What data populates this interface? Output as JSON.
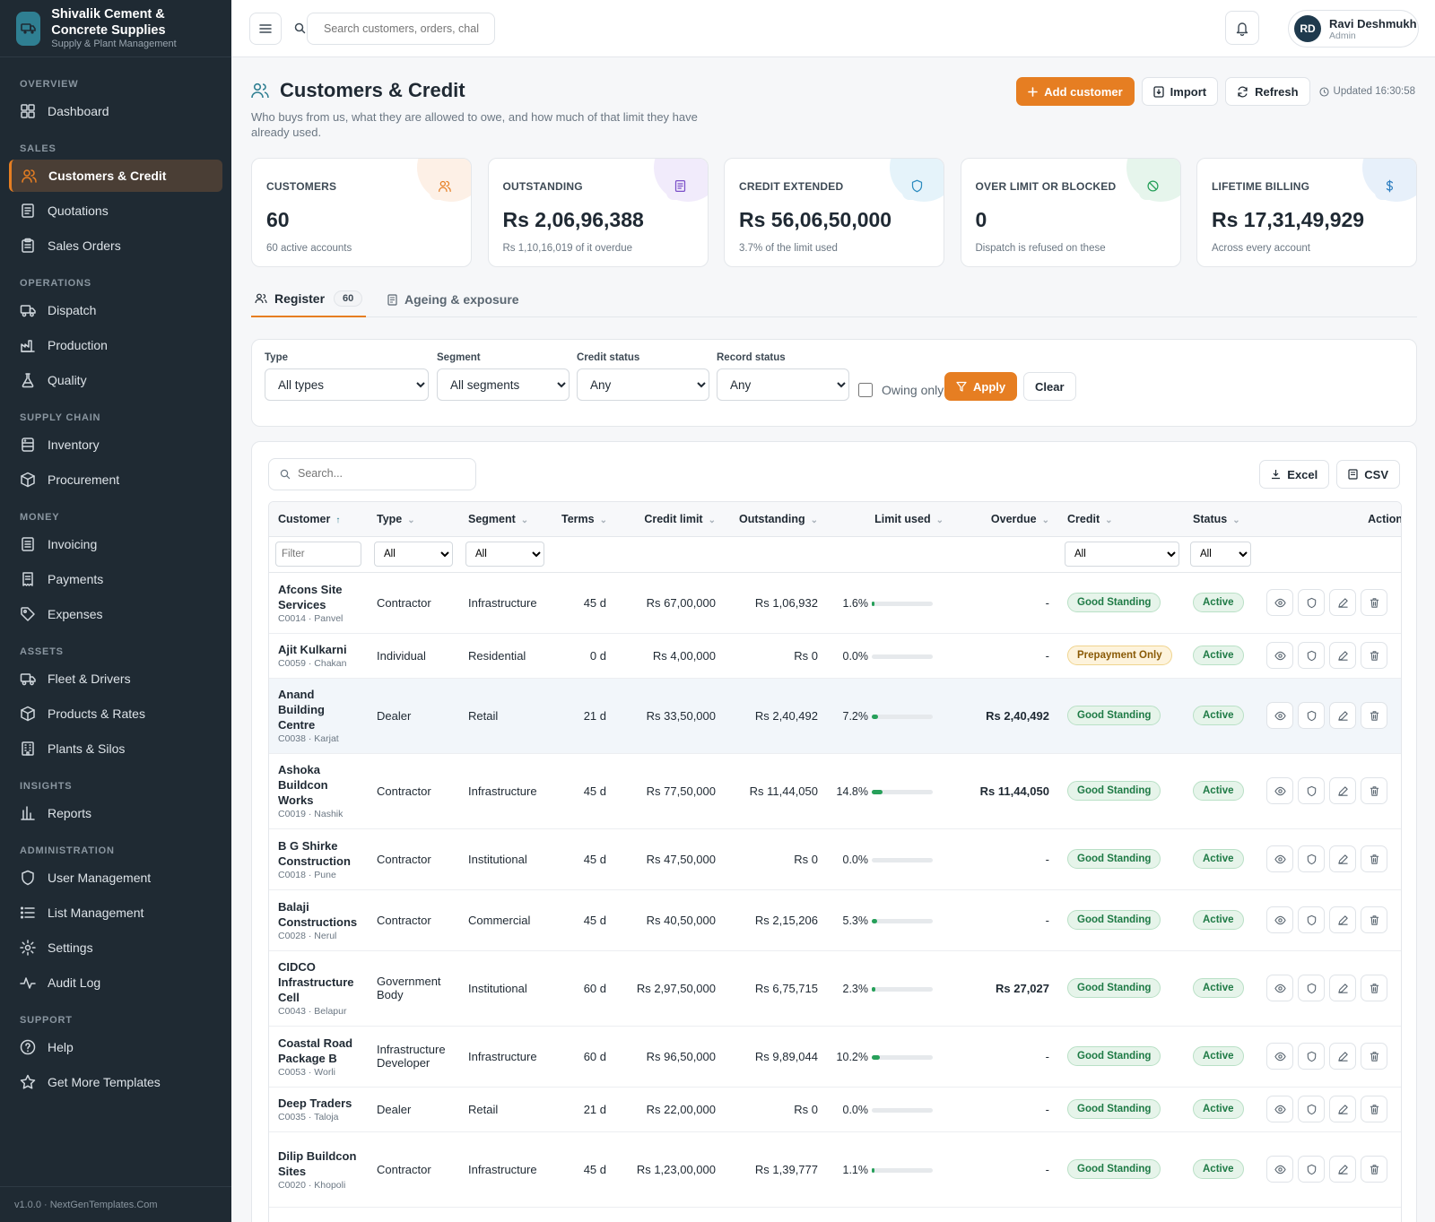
{
  "brand": {
    "title": "Shivalik Cement & Concrete Supplies",
    "subtitle": "Supply & Plant Management"
  },
  "nav": [
    {
      "section": "OVERVIEW",
      "items": [
        {
          "label": "Dashboard",
          "icon": "dashboard-icon"
        }
      ]
    },
    {
      "section": "SALES",
      "items": [
        {
          "label": "Customers & Credit",
          "icon": "users-icon",
          "active": true
        },
        {
          "label": "Quotations",
          "icon": "document-icon"
        },
        {
          "label": "Sales Orders",
          "icon": "clipboard-icon"
        }
      ]
    },
    {
      "section": "OPERATIONS",
      "items": [
        {
          "label": "Dispatch",
          "icon": "truck-icon"
        },
        {
          "label": "Production",
          "icon": "factory-icon"
        },
        {
          "label": "Quality",
          "icon": "flask-icon"
        }
      ]
    },
    {
      "section": "SUPPLY CHAIN",
      "items": [
        {
          "label": "Inventory",
          "icon": "database-icon"
        },
        {
          "label": "Procurement",
          "icon": "box-icon"
        }
      ]
    },
    {
      "section": "MONEY",
      "items": [
        {
          "label": "Invoicing",
          "icon": "invoice-icon"
        },
        {
          "label": "Payments",
          "icon": "receipt-icon"
        },
        {
          "label": "Expenses",
          "icon": "tag-icon"
        }
      ]
    },
    {
      "section": "ASSETS",
      "items": [
        {
          "label": "Fleet & Drivers",
          "icon": "truck-icon"
        },
        {
          "label": "Products & Rates",
          "icon": "box-icon"
        },
        {
          "label": "Plants & Silos",
          "icon": "building-icon"
        }
      ]
    },
    {
      "section": "INSIGHTS",
      "items": [
        {
          "label": "Reports",
          "icon": "bar-chart-icon"
        }
      ]
    },
    {
      "section": "ADMINISTRATION",
      "items": [
        {
          "label": "User Management",
          "icon": "shield-icon"
        },
        {
          "label": "List Management",
          "icon": "list-icon"
        },
        {
          "label": "Settings",
          "icon": "gear-icon"
        },
        {
          "label": "Audit Log",
          "icon": "activity-icon"
        }
      ]
    },
    {
      "section": "SUPPORT",
      "items": [
        {
          "label": "Help",
          "icon": "help-icon"
        },
        {
          "label": "Get More Templates",
          "icon": "star-icon"
        }
      ]
    }
  ],
  "footer": "v1.0.0 · NextGenTemplates.Com",
  "topbar": {
    "search_placeholder": "Search customers, orders, chal",
    "user_name": "Ravi Deshmukh",
    "user_role": "Admin",
    "user_initials": "RD"
  },
  "page": {
    "title": "Customers & Credit",
    "description": "Who buys from us, what they are allowed to owe, and how much of that limit they have already used.",
    "add_label": "Add customer",
    "import_label": "Import",
    "refresh_label": "Refresh",
    "updated": "Updated 16:30:58"
  },
  "stats": [
    {
      "label": "CUSTOMERS",
      "value": "60",
      "sub": "60 active accounts",
      "icon": "users-icon",
      "color": "#e67e22",
      "bg": "#fdf0e6"
    },
    {
      "label": "OUTSTANDING",
      "value": "Rs 2,06,96,388",
      "sub": "Rs 1,10,16,019 of it overdue",
      "icon": "document-icon",
      "color": "#7b4fc8",
      "bg": "#f1ebfb"
    },
    {
      "label": "CREDIT EXTENDED",
      "value": "Rs 56,06,50,000",
      "sub": "3.7% of the limit used",
      "icon": "shield-icon",
      "color": "#2b8bbf",
      "bg": "#e5f3fa"
    },
    {
      "label": "OVER LIMIT OR BLOCKED",
      "value": "0",
      "sub": "Dispatch is refused on these",
      "icon": "ban-icon",
      "color": "#27a05a",
      "bg": "#e6f5ec"
    },
    {
      "label": "LIFETIME BILLING",
      "value": "Rs 17,31,49,929",
      "sub": "Across every account",
      "icon": "dollar-icon",
      "color": "#2f7fc1",
      "bg": "#e7f0fa"
    }
  ],
  "tabs": {
    "register": "Register",
    "register_count": "60",
    "ageing": "Ageing & exposure"
  },
  "filters": {
    "type_label": "Type",
    "type_value": "All types",
    "segment_label": "Segment",
    "segment_value": "All segments",
    "credit_label": "Credit status",
    "credit_value": "Any",
    "record_label": "Record status",
    "record_value": "Any",
    "owing_label": "Owing only",
    "apply_label": "Apply",
    "clear_label": "Clear"
  },
  "table": {
    "search_placeholder": "Search...",
    "excel_label": "Excel",
    "csv_label": "CSV",
    "columns": {
      "customer": "Customer",
      "type": "Type",
      "segment": "Segment",
      "terms": "Terms",
      "credit_limit": "Credit limit",
      "outstanding": "Outstanding",
      "limit_used": "Limit used",
      "overdue": "Overdue",
      "credit": "Credit",
      "status": "Status",
      "actions": "Action"
    },
    "filter_placeholder": "Filter",
    "filter_all": "All",
    "rows": [
      {
        "name": "Afcons Site Services",
        "meta": "C0014 · Panvel",
        "type": "Contractor",
        "segment": "Infrastructure",
        "terms": "45 d",
        "limit": "Rs 67,00,000",
        "outstanding": "Rs 1,06,932",
        "pct": "1.6%",
        "pct_value": 1.6,
        "overdue": "-",
        "credit": "Good Standing",
        "credit_kind": "good",
        "status": "Active"
      },
      {
        "name": "Ajit Kulkarni",
        "meta": "C0059 · Chakan",
        "type": "Individual",
        "segment": "Residential",
        "terms": "0 d",
        "limit": "Rs 4,00,000",
        "outstanding": "Rs 0",
        "pct": "0.0%",
        "pct_value": 0,
        "overdue": "-",
        "credit": "Prepayment Only",
        "credit_kind": "prepay",
        "status": "Active"
      },
      {
        "name": "Anand Building Centre",
        "meta": "C0038 · Karjat",
        "type": "Dealer",
        "segment": "Retail",
        "terms": "21 d",
        "limit": "Rs 33,50,000",
        "outstanding": "Rs 2,40,492",
        "pct": "7.2%",
        "pct_value": 7.2,
        "overdue": "Rs 2,40,492",
        "credit": "Good Standing",
        "credit_kind": "good",
        "status": "Active",
        "highlight": true
      },
      {
        "name": "Ashoka Buildcon Works",
        "meta": "C0019 · Nashik",
        "type": "Contractor",
        "segment": "Infrastructure",
        "terms": "45 d",
        "limit": "Rs 77,50,000",
        "outstanding": "Rs 11,44,050",
        "pct": "14.8%",
        "pct_value": 14.8,
        "overdue": "Rs 11,44,050",
        "credit": "Good Standing",
        "credit_kind": "good",
        "status": "Active"
      },
      {
        "name": "B G Shirke Construction",
        "meta": "C0018 · Pune",
        "type": "Contractor",
        "segment": "Institutional",
        "terms": "45 d",
        "limit": "Rs 47,50,000",
        "outstanding": "Rs 0",
        "pct": "0.0%",
        "pct_value": 0,
        "overdue": "-",
        "credit": "Good Standing",
        "credit_kind": "good",
        "status": "Active"
      },
      {
        "name": "Balaji Constructions",
        "meta": "C0028 · Nerul",
        "type": "Contractor",
        "segment": "Commercial",
        "terms": "45 d",
        "limit": "Rs 40,50,000",
        "outstanding": "Rs 2,15,206",
        "pct": "5.3%",
        "pct_value": 5.3,
        "overdue": "-",
        "credit": "Good Standing",
        "credit_kind": "good",
        "status": "Active"
      },
      {
        "name": "CIDCO Infrastructure Cell",
        "meta": "C0043 · Belapur",
        "type": "Government Body",
        "segment": "Institutional",
        "terms": "60 d",
        "limit": "Rs 2,97,50,000",
        "outstanding": "Rs 6,75,715",
        "pct": "2.3%",
        "pct_value": 2.3,
        "overdue": "Rs 27,027",
        "credit": "Good Standing",
        "credit_kind": "good",
        "status": "Active"
      },
      {
        "name": "Coastal Road Package B",
        "meta": "C0053 · Worli",
        "type": "Infrastructure Developer",
        "segment": "Infrastructure",
        "terms": "60 d",
        "limit": "Rs 96,50,000",
        "outstanding": "Rs 9,89,044",
        "pct": "10.2%",
        "pct_value": 10.2,
        "overdue": "-",
        "credit": "Good Standing",
        "credit_kind": "good",
        "status": "Active"
      },
      {
        "name": "Deep Traders",
        "meta": "C0035 · Taloja",
        "type": "Dealer",
        "segment": "Retail",
        "terms": "21 d",
        "limit": "Rs 22,00,000",
        "outstanding": "Rs 0",
        "pct": "0.0%",
        "pct_value": 0,
        "overdue": "-",
        "credit": "Good Standing",
        "credit_kind": "good",
        "status": "Active"
      },
      {
        "name": "Dilip Buildcon Sites",
        "meta": "C0020 · Khopoli",
        "type": "Contractor",
        "segment": "Infrastructure",
        "terms": "45 d",
        "limit": "Rs 1,23,00,000",
        "outstanding": "Rs 1,39,777",
        "pct": "1.1%",
        "pct_value": 1.1,
        "overdue": "-",
        "credit": "Good Standing",
        "credit_kind": "good",
        "status": "Active"
      }
    ]
  }
}
